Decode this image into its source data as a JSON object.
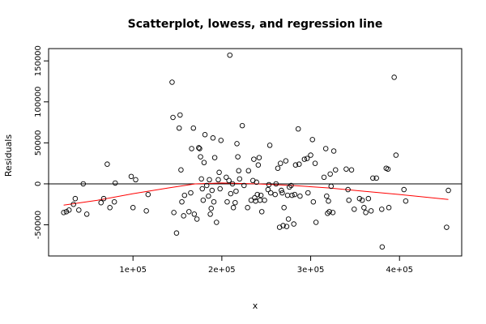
{
  "chart_data": {
    "type": "scatter",
    "title": "Scatterplot, lowess, and regression line",
    "xlabel": "x",
    "ylabel": "Residuals",
    "xlim": [
      5000,
      470000
    ],
    "ylim": [
      -88000,
      165000
    ],
    "x_ticks": [
      100000,
      200000,
      300000,
      400000
    ],
    "x_tick_labels": [
      "1e+05",
      "2e+05",
      "3e+05",
      "4e+05"
    ],
    "y_ticks": [
      -50000,
      0,
      50000,
      100000,
      150000
    ],
    "y_tick_labels": [
      "-50000",
      "0",
      "50000",
      "100000",
      "150000"
    ],
    "grid": false,
    "points": [
      {
        "x": 22000,
        "y": -35000
      },
      {
        "x": 25000,
        "y": -34000
      },
      {
        "x": 28000,
        "y": -32000
      },
      {
        "x": 33000,
        "y": -25000
      },
      {
        "x": 35000,
        "y": -18000
      },
      {
        "x": 39000,
        "y": -32000
      },
      {
        "x": 44000,
        "y": 0
      },
      {
        "x": 48000,
        "y": -37000
      },
      {
        "x": 64000,
        "y": -23000
      },
      {
        "x": 67000,
        "y": -18000
      },
      {
        "x": 71000,
        "y": 24000
      },
      {
        "x": 74000,
        "y": -29000
      },
      {
        "x": 79000,
        "y": -22000
      },
      {
        "x": 80000,
        "y": 1000
      },
      {
        "x": 98000,
        "y": 9000
      },
      {
        "x": 100000,
        "y": -29000
      },
      {
        "x": 103000,
        "y": 5000
      },
      {
        "x": 115000,
        "y": -33000
      },
      {
        "x": 117000,
        "y": -13000
      },
      {
        "x": 144000,
        "y": 124000
      },
      {
        "x": 145000,
        "y": 81000
      },
      {
        "x": 146000,
        "y": -35000
      },
      {
        "x": 149000,
        "y": -60000
      },
      {
        "x": 152000,
        "y": 68000
      },
      {
        "x": 153000,
        "y": 84000
      },
      {
        "x": 154000,
        "y": 17000
      },
      {
        "x": 155000,
        "y": -22000
      },
      {
        "x": 157000,
        "y": -39000
      },
      {
        "x": 158000,
        "y": -14000
      },
      {
        "x": 163000,
        "y": -34000
      },
      {
        "x": 165000,
        "y": -11000
      },
      {
        "x": 166000,
        "y": 43000
      },
      {
        "x": 168000,
        "y": 68000
      },
      {
        "x": 169000,
        "y": -37000
      },
      {
        "x": 172000,
        "y": -43000
      },
      {
        "x": 174000,
        "y": 44000
      },
      {
        "x": 175000,
        "y": 43000
      },
      {
        "x": 176000,
        "y": 33000
      },
      {
        "x": 177000,
        "y": 6000
      },
      {
        "x": 178000,
        "y": -6000
      },
      {
        "x": 179000,
        "y": -20000
      },
      {
        "x": 180000,
        "y": 26000
      },
      {
        "x": 181000,
        "y": 60000
      },
      {
        "x": 183000,
        "y": -2000
      },
      {
        "x": 185000,
        "y": -15000
      },
      {
        "x": 186000,
        "y": 5000
      },
      {
        "x": 187000,
        "y": -37000
      },
      {
        "x": 188000,
        "y": -30000
      },
      {
        "x": 189000,
        "y": -8000
      },
      {
        "x": 190000,
        "y": 56000
      },
      {
        "x": 191000,
        "y": -22000
      },
      {
        "x": 192000,
        "y": 32000
      },
      {
        "x": 194000,
        "y": -47000
      },
      {
        "x": 196000,
        "y": 5000
      },
      {
        "x": 197000,
        "y": 14000
      },
      {
        "x": 198000,
        "y": -6000
      },
      {
        "x": 199000,
        "y": 53000
      },
      {
        "x": 205000,
        "y": 8000
      },
      {
        "x": 206000,
        "y": -22000
      },
      {
        "x": 208000,
        "y": 4000
      },
      {
        "x": 209000,
        "y": 157000
      },
      {
        "x": 210000,
        "y": -12000
      },
      {
        "x": 212000,
        "y": 0
      },
      {
        "x": 213000,
        "y": -29000
      },
      {
        "x": 215000,
        "y": -23000
      },
      {
        "x": 216000,
        "y": -9000
      },
      {
        "x": 217000,
        "y": 49000
      },
      {
        "x": 218000,
        "y": 33000
      },
      {
        "x": 219000,
        "y": 16000
      },
      {
        "x": 220000,
        "y": 6000
      },
      {
        "x": 223000,
        "y": 71000
      },
      {
        "x": 225000,
        "y": -2000
      },
      {
        "x": 229000,
        "y": -29000
      },
      {
        "x": 230000,
        "y": 16000
      },
      {
        "x": 233000,
        "y": -20000
      },
      {
        "x": 235000,
        "y": 4000
      },
      {
        "x": 236000,
        "y": 30000
      },
      {
        "x": 237000,
        "y": -17000
      },
      {
        "x": 238000,
        "y": -21000
      },
      {
        "x": 239000,
        "y": 2000
      },
      {
        "x": 240000,
        "y": -13000
      },
      {
        "x": 241000,
        "y": 23000
      },
      {
        "x": 242000,
        "y": 32000
      },
      {
        "x": 243000,
        "y": -20000
      },
      {
        "x": 244000,
        "y": -14000
      },
      {
        "x": 245000,
        "y": -34000
      },
      {
        "x": 248000,
        "y": -20000
      },
      {
        "x": 252000,
        "y": -7000
      },
      {
        "x": 253000,
        "y": -1000
      },
      {
        "x": 254000,
        "y": 47000
      },
      {
        "x": 255000,
        "y": -11000
      },
      {
        "x": 260000,
        "y": -13000
      },
      {
        "x": 261000,
        "y": 0
      },
      {
        "x": 263000,
        "y": 19000
      },
      {
        "x": 265000,
        "y": -53000
      },
      {
        "x": 266000,
        "y": 25000
      },
      {
        "x": 267000,
        "y": -8000
      },
      {
        "x": 268000,
        "y": -11000
      },
      {
        "x": 269000,
        "y": -51000
      },
      {
        "x": 270000,
        "y": -29000
      },
      {
        "x": 272000,
        "y": 28000
      },
      {
        "x": 273000,
        "y": -52000
      },
      {
        "x": 274000,
        "y": -14000
      },
      {
        "x": 275000,
        "y": -43000
      },
      {
        "x": 276000,
        "y": -4000
      },
      {
        "x": 278000,
        "y": -2000
      },
      {
        "x": 279000,
        "y": -14000
      },
      {
        "x": 281000,
        "y": -49000
      },
      {
        "x": 282000,
        "y": -13000
      },
      {
        "x": 283000,
        "y": 23000
      },
      {
        "x": 286000,
        "y": 67000
      },
      {
        "x": 287000,
        "y": 24000
      },
      {
        "x": 288000,
        "y": -15000
      },
      {
        "x": 293000,
        "y": 30000
      },
      {
        "x": 296000,
        "y": 31000
      },
      {
        "x": 297000,
        "y": -11000
      },
      {
        "x": 300000,
        "y": 35000
      },
      {
        "x": 302000,
        "y": 54000
      },
      {
        "x": 303000,
        "y": -22000
      },
      {
        "x": 305000,
        "y": 25000
      },
      {
        "x": 306000,
        "y": -47000
      },
      {
        "x": 315000,
        "y": 8000
      },
      {
        "x": 317000,
        "y": 43000
      },
      {
        "x": 318000,
        "y": -15000
      },
      {
        "x": 319000,
        "y": -36000
      },
      {
        "x": 320000,
        "y": -21000
      },
      {
        "x": 321000,
        "y": -34000
      },
      {
        "x": 322000,
        "y": 12000
      },
      {
        "x": 323000,
        "y": -3000
      },
      {
        "x": 325000,
        "y": -35000
      },
      {
        "x": 326000,
        "y": 40000
      },
      {
        "x": 328000,
        "y": 17000
      },
      {
        "x": 340000,
        "y": 18000
      },
      {
        "x": 342000,
        "y": -7000
      },
      {
        "x": 343000,
        "y": -20000
      },
      {
        "x": 346000,
        "y": 17000
      },
      {
        "x": 349000,
        "y": -31000
      },
      {
        "x": 355000,
        "y": -18000
      },
      {
        "x": 358000,
        "y": -20000
      },
      {
        "x": 360000,
        "y": -29000
      },
      {
        "x": 362000,
        "y": -35000
      },
      {
        "x": 365000,
        "y": -18000
      },
      {
        "x": 368000,
        "y": -33000
      },
      {
        "x": 370000,
        "y": 7000
      },
      {
        "x": 374000,
        "y": 7000
      },
      {
        "x": 380000,
        "y": -31000
      },
      {
        "x": 380500,
        "y": -77000
      },
      {
        "x": 385000,
        "y": 19000
      },
      {
        "x": 387000,
        "y": 18000
      },
      {
        "x": 388000,
        "y": -29000
      },
      {
        "x": 394000,
        "y": 130000
      },
      {
        "x": 396000,
        "y": 35000
      },
      {
        "x": 405000,
        "y": -7000
      },
      {
        "x": 407000,
        "y": -21000
      },
      {
        "x": 453000,
        "y": -53000
      },
      {
        "x": 455000,
        "y": -8000
      }
    ],
    "regression_line": {
      "color": "#000000",
      "x": [
        5000,
        470000
      ],
      "y": [
        0,
        0
      ]
    },
    "lowess_line": {
      "color": "#ff0000",
      "x": [
        22000,
        60000,
        100000,
        140000,
        170000,
        200000,
        240000,
        280000,
        320000,
        360000,
        400000,
        455000
      ],
      "y": [
        -26000,
        -20000,
        -12000,
        -5000,
        0,
        1000,
        0,
        -2000,
        -5000,
        -9000,
        -13000,
        -19000
      ]
    }
  }
}
